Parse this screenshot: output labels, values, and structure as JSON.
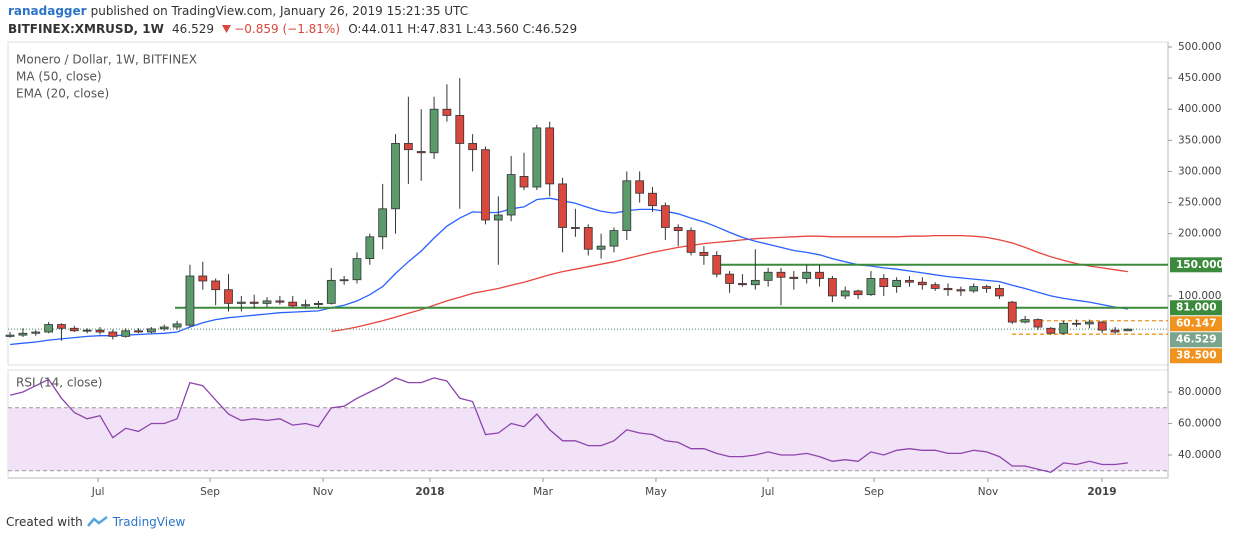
{
  "header": {
    "author": "ranadagger",
    "published": "published on TradingView.com, January 26, 2019 15:21:35 UTC",
    "symbol": "BITFINEX:XMRUSD, 1W",
    "last": "46.529",
    "change": "−0.859 (−1.81%)",
    "ohlc": "O:44.011 H:47.831 L:43.560 C:46.529"
  },
  "footer": {
    "created": "Created with",
    "brand": "TradingView"
  },
  "chart_data": [
    {
      "type": "candlestick",
      "title": "Monero / Dollar, 1W, BITFINEX",
      "up_color": "#5b9a6b",
      "down_color": "#d9473d",
      "grid": false,
      "open": [
        35,
        37,
        40,
        42,
        54,
        48,
        44,
        45,
        42,
        35,
        44,
        42,
        47,
        50,
        53,
        132,
        124,
        110,
        88,
        90,
        88,
        92,
        90,
        84,
        86,
        88,
        125,
        126,
        160,
        195,
        240,
        345,
        332,
        330,
        400,
        390,
        345,
        335,
        222,
        230,
        292,
        275,
        370,
        280,
        210,
        210,
        175,
        180,
        205,
        285,
        265,
        245,
        210,
        205,
        170,
        165,
        135,
        120,
        118,
        125,
        138,
        130,
        128,
        138,
        128,
        100,
        108,
        102,
        128,
        115,
        125,
        122,
        118,
        112,
        110,
        108,
        115,
        112,
        90,
        58,
        62,
        48,
        40,
        56,
        55,
        58,
        45,
        44.011
      ],
      "high": [
        42,
        48,
        45,
        58,
        56,
        52,
        48,
        50,
        46,
        48,
        48,
        50,
        54,
        60,
        150,
        155,
        128,
        135,
        100,
        102,
        98,
        100,
        100,
        94,
        92,
        145,
        132,
        170,
        200,
        280,
        360,
        420,
        400,
        420,
        440,
        450,
        360,
        340,
        260,
        325,
        330,
        375,
        380,
        290,
        240,
        215,
        200,
        210,
        300,
        300,
        275,
        250,
        215,
        210,
        180,
        172,
        140,
        135,
        175,
        145,
        145,
        140,
        150,
        150,
        132,
        115,
        110,
        140,
        135,
        130,
        132,
        130,
        122,
        120,
        115,
        120,
        118,
        118,
        92,
        68,
        64,
        50,
        60,
        62,
        62,
        60,
        50,
        47.831
      ],
      "low": [
        33,
        34,
        36,
        40,
        28,
        42,
        40,
        38,
        30,
        33,
        40,
        40,
        44,
        46,
        50,
        110,
        85,
        75,
        75,
        80,
        82,
        86,
        82,
        80,
        80,
        86,
        118,
        120,
        150,
        175,
        200,
        280,
        285,
        320,
        380,
        240,
        300,
        215,
        150,
        220,
        270,
        270,
        260,
        170,
        195,
        165,
        160,
        170,
        190,
        250,
        235,
        190,
        180,
        165,
        150,
        130,
        105,
        115,
        110,
        115,
        85,
        110,
        120,
        115,
        90,
        95,
        95,
        100,
        100,
        105,
        115,
        110,
        108,
        100,
        100,
        105,
        105,
        95,
        55,
        56,
        45,
        38,
        38,
        50,
        48,
        40,
        38,
        43.56
      ],
      "close": [
        37,
        40,
        42,
        54,
        48,
        44,
        45,
        42,
        35,
        44,
        42,
        47,
        50,
        55,
        132,
        124,
        110,
        88,
        90,
        88,
        92,
        90,
        84,
        86,
        88,
        125,
        126,
        160,
        195,
        240,
        345,
        335,
        330,
        400,
        390,
        345,
        335,
        222,
        230,
        295,
        275,
        370,
        280,
        210,
        210,
        175,
        180,
        205,
        285,
        265,
        245,
        210,
        205,
        170,
        165,
        135,
        120,
        118,
        125,
        138,
        130,
        128,
        138,
        128,
        100,
        108,
        102,
        128,
        115,
        125,
        122,
        118,
        112,
        110,
        108,
        115,
        112,
        100,
        58,
        62,
        50,
        40,
        56,
        55,
        58,
        45,
        42,
        46.529
      ],
      "series": [
        {
          "name": "MA (50, close)",
          "color": "#e8453c",
          "values": [
            null,
            null,
            null,
            null,
            null,
            null,
            null,
            null,
            null,
            null,
            null,
            null,
            null,
            null,
            null,
            null,
            null,
            null,
            null,
            null,
            null,
            null,
            null,
            null,
            null,
            43,
            46,
            50,
            55,
            60,
            66,
            72,
            78,
            85,
            92,
            98,
            104,
            108,
            112,
            117,
            122,
            128,
            134,
            139,
            143,
            147,
            151,
            155,
            160,
            165,
            170,
            174,
            178,
            181,
            184,
            186,
            188,
            190,
            192,
            193,
            194,
            195,
            196,
            196,
            195,
            195,
            195,
            195,
            195,
            195,
            196,
            196,
            197,
            197,
            197,
            196,
            194,
            190,
            185,
            178,
            170,
            163,
            157,
            152,
            148,
            145,
            142,
            139
          ]
        },
        {
          "name": "EMA (20, close)",
          "color": "#2962ff",
          "values": [
            22,
            24,
            26,
            29,
            31,
            33,
            35,
            36,
            36,
            37,
            38,
            39,
            40,
            42,
            50,
            57,
            62,
            65,
            67,
            69,
            71,
            73,
            74,
            75,
            76,
            81,
            85,
            92,
            102,
            115,
            136,
            155,
            172,
            193,
            212,
            225,
            235,
            234,
            234,
            240,
            243,
            255,
            257,
            253,
            249,
            242,
            236,
            233,
            237,
            239,
            239,
            236,
            232,
            225,
            219,
            211,
            202,
            194,
            188,
            183,
            178,
            173,
            170,
            166,
            160,
            155,
            150,
            148,
            145,
            143,
            140,
            137,
            134,
            131,
            129,
            127,
            125,
            123,
            117,
            112,
            106,
            100,
            96,
            93,
            90,
            86,
            82,
            79
          ]
        }
      ],
      "price_tags": [
        {
          "value": 150,
          "label": "150.000",
          "color": "#3c8a3c",
          "line": "solid"
        },
        {
          "value": 81,
          "label": "81.000",
          "color": "#3c8a3c",
          "line": "solid"
        },
        {
          "value": 60.147,
          "label": "60.147",
          "color": "#f0931e",
          "line": "dashed"
        },
        {
          "value": 46.529,
          "label": "46.529",
          "color": "#7aa58c",
          "line": "dotted"
        },
        {
          "value": 38.5,
          "label": "38.500",
          "color": "#f0931e",
          "line": "dashed"
        }
      ],
      "xlim": [
        -0.16,
        90.12
      ],
      "ylim": [
        -11,
        508
      ],
      "xticks": [
        {
          "value": 6.85,
          "label": "Jul"
        },
        {
          "value": 15.56,
          "label": "Sep"
        },
        {
          "value": 24.36,
          "label": "Nov"
        },
        {
          "value": 32.68,
          "label": "2018"
        },
        {
          "value": 41.48,
          "label": "Mar"
        },
        {
          "value": 50.27,
          "label": "May"
        },
        {
          "value": 58.99,
          "label": "Jul"
        },
        {
          "value": 67.24,
          "label": "Sep"
        },
        {
          "value": 76.11,
          "label": "Nov"
        },
        {
          "value": 84.98,
          "label": "2019"
        }
      ],
      "yticks": [
        {
          "value": 100,
          "label": "100.000"
        },
        {
          "value": 200,
          "label": "200.000"
        },
        {
          "value": 250,
          "label": "250.000"
        },
        {
          "value": 300,
          "label": "300.000"
        },
        {
          "value": 350,
          "label": "350.000"
        },
        {
          "value": 400,
          "label": "400.000"
        },
        {
          "value": 450,
          "label": "450.000"
        },
        {
          "value": 500,
          "label": "500.000"
        }
      ]
    },
    {
      "type": "line",
      "band": [
        30,
        70
      ],
      "band_color": "#f1e2f8",
      "series": [
        {
          "name": "RSI (14, close)",
          "color": "#8e44ad",
          "values": [
            78,
            80,
            84,
            88,
            76,
            67,
            63,
            65,
            51,
            57,
            55,
            60,
            60,
            63,
            86,
            84,
            75,
            66,
            62,
            63,
            62,
            63,
            59,
            60,
            58,
            70,
            71,
            76,
            80,
            84,
            89,
            86,
            86,
            89,
            87,
            76,
            74,
            53,
            54,
            60,
            58,
            66,
            56,
            49,
            49,
            46,
            46,
            49,
            56,
            54,
            53,
            49,
            48,
            44,
            44,
            41,
            39,
            39,
            40,
            42,
            40,
            40,
            41,
            39,
            36,
            37,
            36,
            42,
            40,
            43,
            44,
            43,
            43,
            41,
            41,
            43,
            42,
            39,
            33,
            33,
            31,
            29,
            35,
            34,
            36,
            34,
            34,
            35
          ]
        }
      ],
      "ylim": [
        25.4,
        94
      ],
      "yticks": [
        {
          "value": 40,
          "label": "40.0000"
        },
        {
          "value": 60,
          "label": "60.0000"
        },
        {
          "value": 80,
          "label": "80.0000"
        }
      ]
    }
  ]
}
